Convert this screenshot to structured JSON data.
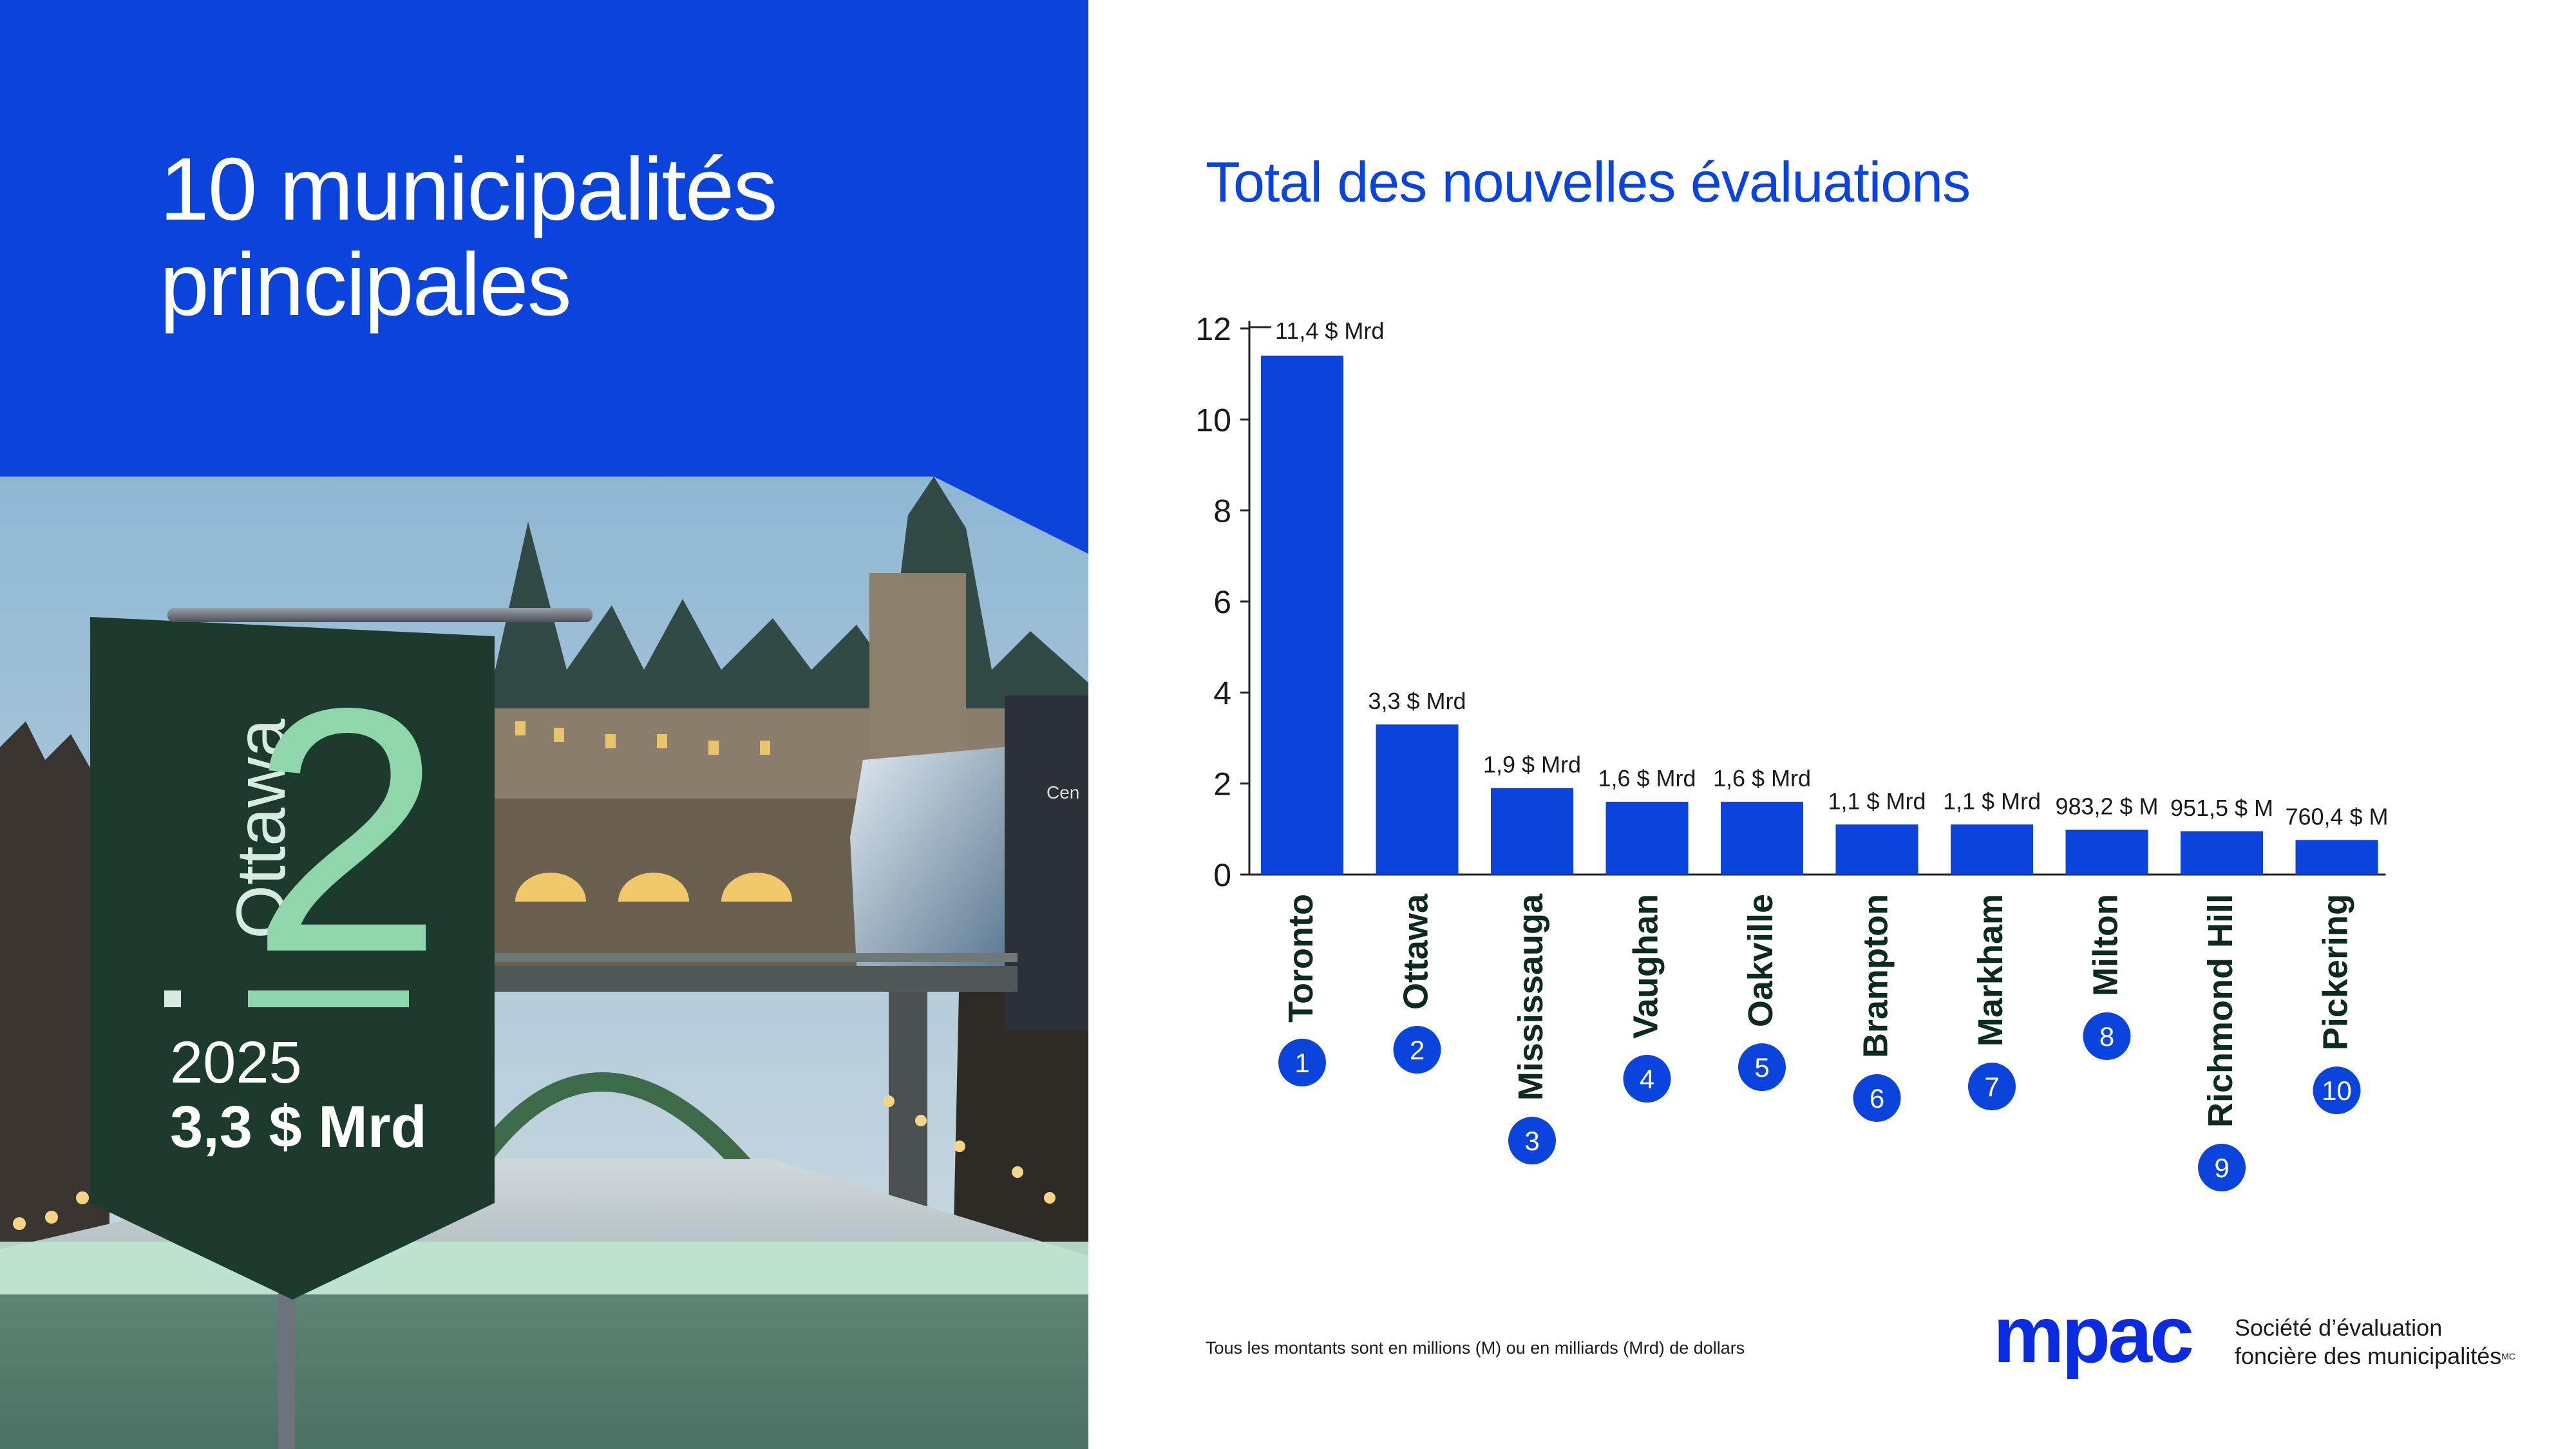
{
  "left_panel": {
    "title": "10 municipalités principales",
    "banner": {
      "city": "Ottawa",
      "rank": "2",
      "year": "2025",
      "value": "3,3 $ Mrd"
    },
    "photo_sign_text": "Cen"
  },
  "chart_data": {
    "type": "bar",
    "title": "Total des nouvelles évaluations",
    "categories": [
      "Toronto",
      "Ottawa",
      "Mississauga",
      "Vaughan",
      "Oakville",
      "Brampton",
      "Markham",
      "Milton",
      "Richmond Hill",
      "Pickering"
    ],
    "ranks": [
      "1",
      "2",
      "3",
      "4",
      "5",
      "6",
      "7",
      "8",
      "9",
      "10"
    ],
    "values": [
      11.4,
      3.3,
      1.9,
      1.6,
      1.6,
      1.1,
      1.1,
      0.9832,
      0.9515,
      0.7604
    ],
    "data_labels": [
      "11,4 $ Mrd",
      "3,3 $ Mrd",
      "1,9 $ Mrd",
      "1,6 $ Mrd",
      "1,6 $ Mrd",
      "1,1 $ Mrd",
      "1,1 $ Mrd",
      "983,2 $ M",
      "951,5 $ M",
      "760,4 $ M"
    ],
    "yticks": [
      "0",
      "2",
      "4",
      "6",
      "8",
      "10",
      "12"
    ],
    "ylim": [
      0,
      12
    ],
    "xlabel": "",
    "ylabel": "",
    "grid": false,
    "legend": "none",
    "bar_color": "#0a44dd",
    "badge_color": "#0a44dd",
    "label_color": "#0d2a1f"
  },
  "footnote": "Tous les montants sont en millions (M) ou en milliards (Mrd) de dollars",
  "logo": {
    "word": "mpac",
    "tagline_line1": "Société d’évaluation",
    "tagline_line2": "foncière des municipalités",
    "trademark": "MC"
  },
  "colors": {
    "brand_blue": "#0a44dd",
    "banner_green": "#1d3b2c",
    "rank_green": "#8fd6ad",
    "mint": "#bfe8d2"
  }
}
